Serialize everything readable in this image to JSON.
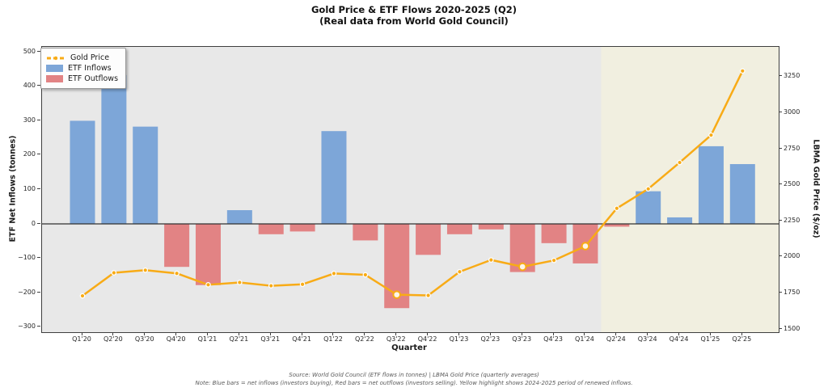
{
  "title": {
    "line1": "Gold Price & ETF Flows 2020-2025 (Q2)",
    "line2": "(Real data from World Gold Council)"
  },
  "legend": {
    "items": [
      {
        "label": "Gold Price",
        "swatch": "dash-dot-line",
        "color": "#f8ab16"
      },
      {
        "label": "ETF Inflows",
        "swatch": "patch",
        "color": "#7da6d8"
      },
      {
        "label": "ETF Outflows",
        "swatch": "patch",
        "color": "#e28384"
      }
    ]
  },
  "axes": {
    "x_label": "Quarter",
    "y_left_label": "ETF Net Inflows (tonnes)",
    "y_right_label": "LBMA Gold Price ($/oz)",
    "y_left_ticks": [
      500,
      400,
      300,
      200,
      100,
      0,
      -100,
      -200,
      -300
    ],
    "y_right_ticks": [
      3250,
      3000,
      2750,
      2500,
      2250,
      2000,
      1750,
      1500
    ],
    "y_left_range": [
      -315,
      515
    ],
    "y_right_range": [
      1478,
      3457
    ]
  },
  "chart_data": {
    "type": "combo-bar-line",
    "categories": [
      "Q1'20",
      "Q2'20",
      "Q3'20",
      "Q4'20",
      "Q1'21",
      "Q2'21",
      "Q3'21",
      "Q4'21",
      "Q1'22",
      "Q2'22",
      "Q3'22",
      "Q4'22",
      "Q1'23",
      "Q2'23",
      "Q3'23",
      "Q4'23",
      "Q1'24",
      "Q2'24",
      "Q3'24",
      "Q4'24",
      "Q1'25",
      "Q2'25"
    ],
    "series": [
      {
        "name": "ETF Net Flows",
        "type": "bar",
        "axis": "left",
        "units": "tonnes",
        "values": [
          300,
          433,
          283,
          -125,
          -178,
          40,
          -30,
          -22,
          270,
          -48,
          -245,
          -90,
          -30,
          -16,
          -140,
          -56,
          -115,
          -8,
          95,
          19,
          226,
          174
        ],
        "color_positive": "#7da6d8",
        "color_negative": "#e28384"
      },
      {
        "name": "Gold Price",
        "type": "line",
        "axis": "right",
        "units": "$/oz",
        "values": [
          1730,
          1890,
          1908,
          1886,
          1807,
          1823,
          1800,
          1810,
          1885,
          1876,
          1738,
          1733,
          1897,
          1979,
          1932,
          1976,
          2075,
          2337,
          2472,
          2655,
          2845,
          3290
        ],
        "color": "#f8ab16",
        "marker_emphasis_indices": [
          10,
          14,
          16
        ]
      }
    ],
    "highlight_region": {
      "from_category": "Q2'24",
      "to_category": "Q2'25",
      "start_boundary_index": 16.5,
      "color": "#f1efe0"
    },
    "plot_background": "#e8e8e8",
    "zero_line_color": "#303030",
    "legend_position": "upper-left",
    "grid": false
  },
  "footer": {
    "line1": "Source: World Gold Council (ETF flows in tonnes) | LBMA Gold Price (quarterly averages)",
    "line2": "Note: Blue bars = net inflows (investors buying), Red bars = net outflows (investors selling). Yellow highlight shows 2024-2025 period of renewed inflows."
  }
}
